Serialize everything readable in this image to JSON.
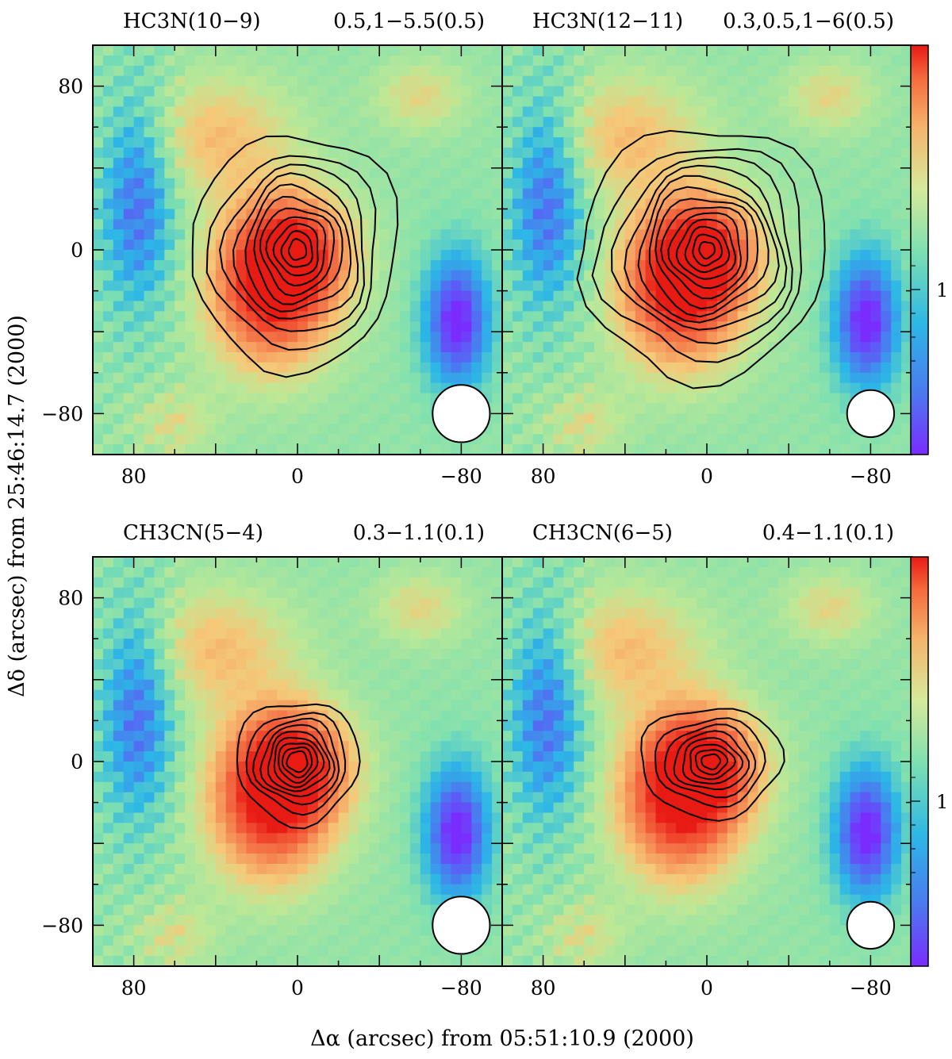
{
  "figure": {
    "xlabel": "Δα (arcsec) from 05:51:10.9 (2000)",
    "ylabel": "Δδ (arcsec) from 25:46:14.7 (2000)",
    "colorbar_tick_label": "1"
  },
  "chart_data": [
    {
      "type": "heatmap",
      "title": {
        "species": "HC3N(10−9)",
        "levels": "0.5,1−5.5(0.5)"
      },
      "xlim": [
        100,
        -100
      ],
      "ylim": [
        -100,
        100
      ],
      "xticks": [
        80,
        0,
        -80
      ],
      "yticks": [
        80,
        0,
        -80
      ],
      "contour_levels": [
        0.5,
        1,
        1.5,
        2,
        2.5,
        3,
        3.5,
        4,
        4.5,
        5,
        5.5
      ],
      "beam_marker": "bottom-right"
    },
    {
      "type": "heatmap",
      "title": {
        "species": "HC3N(12−11)",
        "levels": "0.3,0.5,1−6(0.5)"
      },
      "xlim": [
        100,
        -100
      ],
      "ylim": [
        -100,
        100
      ],
      "xticks": [
        80,
        0,
        -80
      ],
      "yticks": [
        80,
        0,
        -80
      ],
      "contour_levels": [
        0.3,
        0.5,
        1,
        1.5,
        2,
        2.5,
        3,
        3.5,
        4,
        4.5,
        5,
        5.5,
        6
      ],
      "beam_marker": "bottom-right"
    },
    {
      "type": "heatmap",
      "title": {
        "species": "CH3CN(5−4)",
        "levels": "0.3−1.1(0.1)"
      },
      "xlim": [
        100,
        -100
      ],
      "ylim": [
        -100,
        100
      ],
      "xticks": [
        80,
        0,
        -80
      ],
      "yticks": [
        80,
        0,
        -80
      ],
      "contour_levels": [
        0.3,
        0.4,
        0.5,
        0.6,
        0.7,
        0.8,
        0.9,
        1.0,
        1.1
      ],
      "beam_marker": "bottom-right"
    },
    {
      "type": "heatmap",
      "title": {
        "species": "CH3CN(6−5)",
        "levels": "0.4−1.1(0.1)"
      },
      "xlim": [
        100,
        -100
      ],
      "ylim": [
        -100,
        100
      ],
      "xticks": [
        80,
        0,
        -80
      ],
      "yticks": [
        80,
        0,
        -80
      ],
      "contour_levels": [
        0.4,
        0.5,
        0.6,
        0.7,
        0.8,
        0.9,
        1.0,
        1.1
      ],
      "beam_marker": "bottom-right"
    }
  ]
}
